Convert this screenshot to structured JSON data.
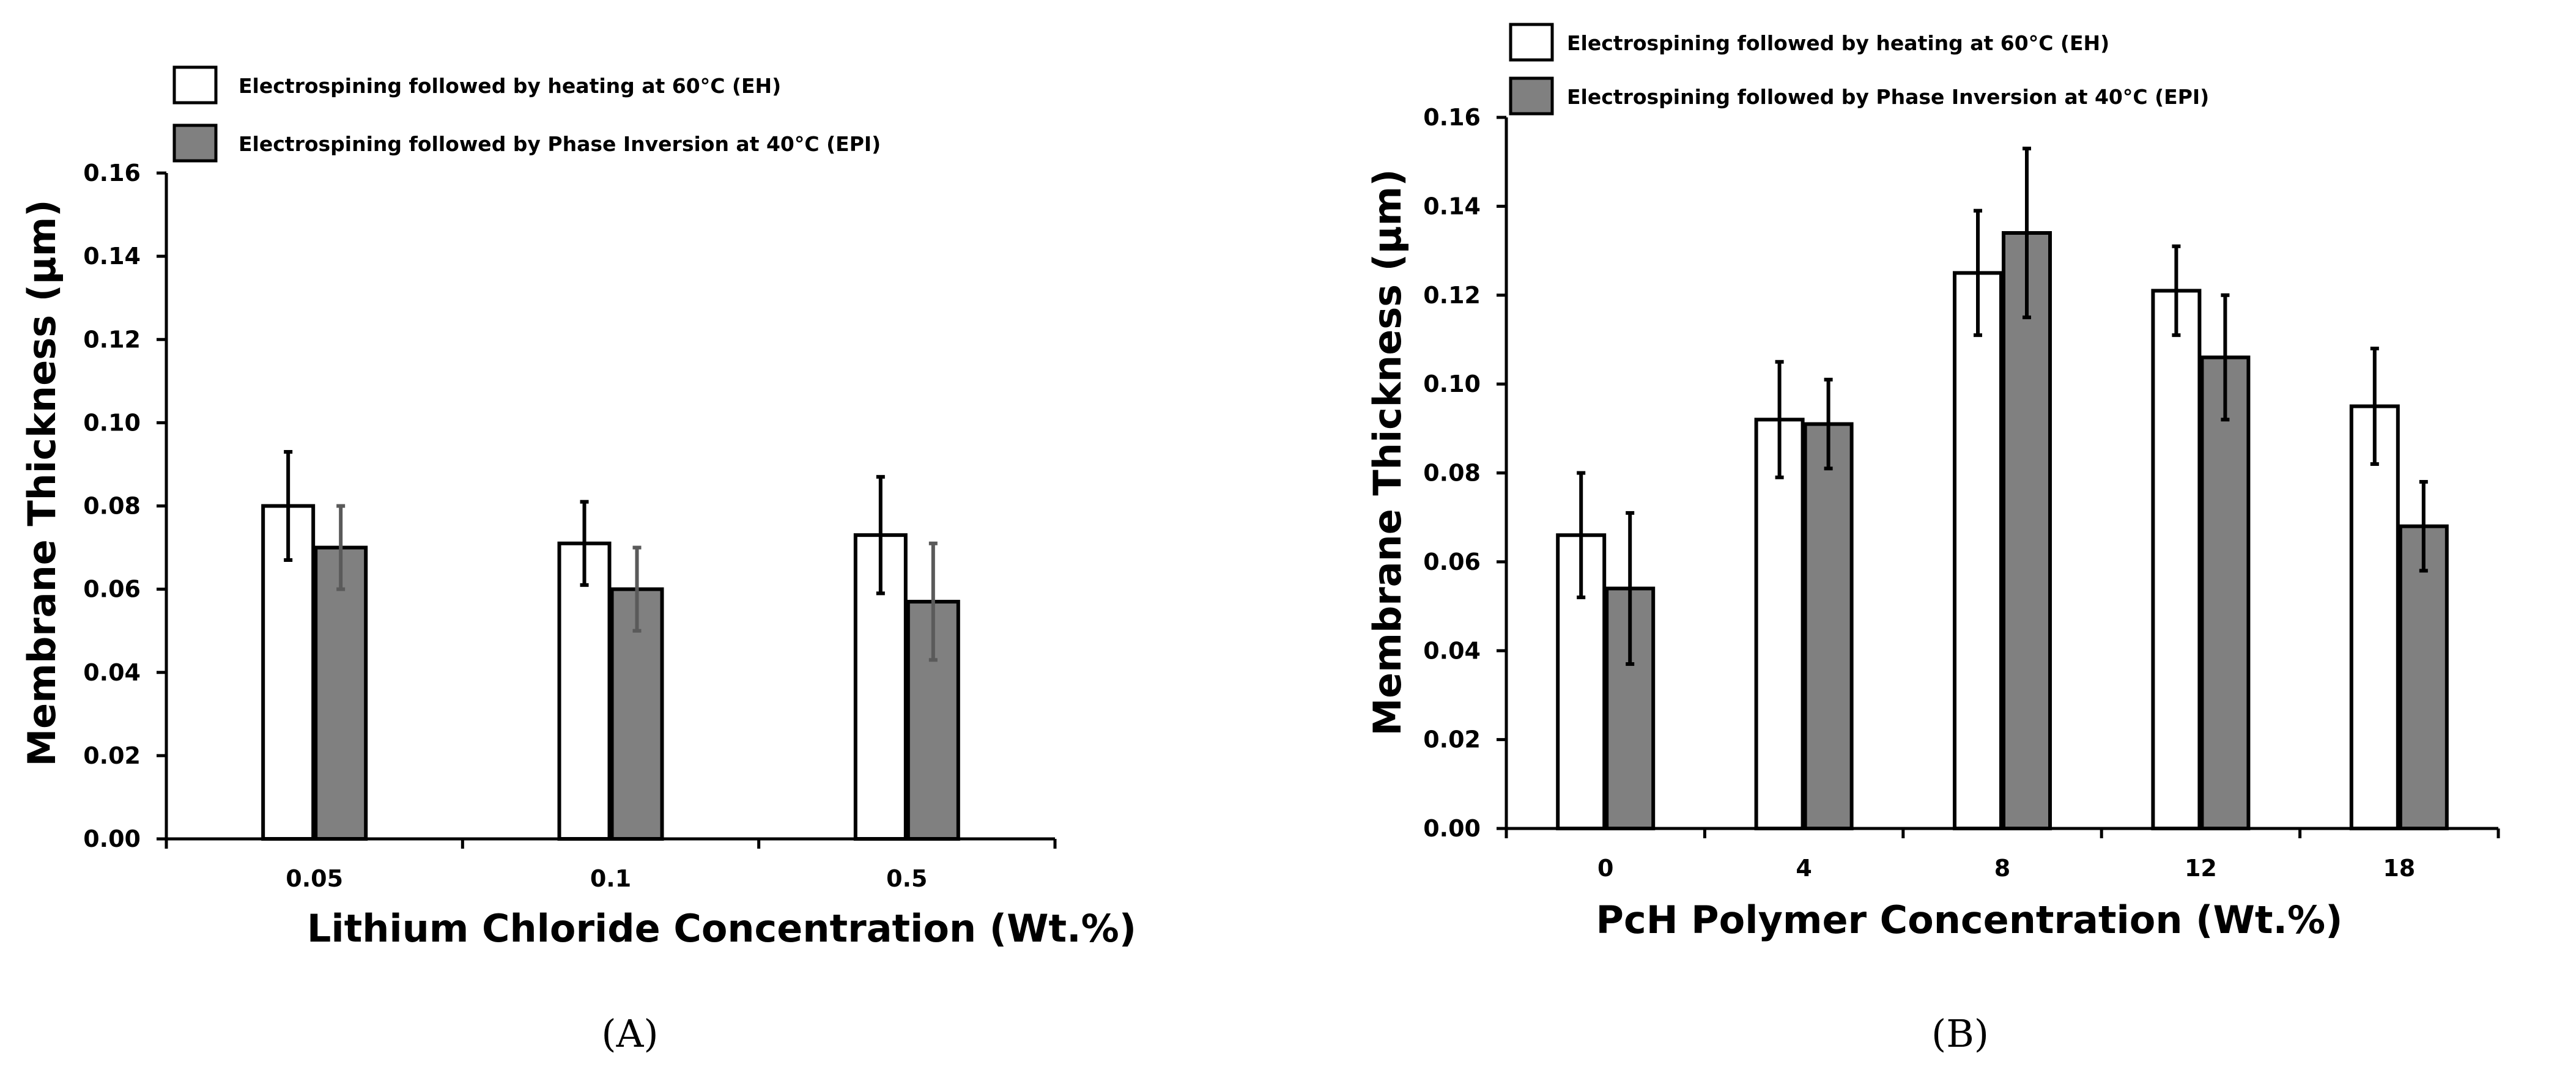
{
  "chart_data": [
    {
      "panel_label": "(A)",
      "type": "bar",
      "xlabel": "Lithium Chloride Concentration (Wt.%)",
      "ylabel": "Membrane Thickness (μm)",
      "ylim": [
        0,
        0.16
      ],
      "yticks": [
        "0.00",
        "0.02",
        "0.04",
        "0.06",
        "0.08",
        "0.10",
        "0.12",
        "0.14",
        "0.16"
      ],
      "categories": [
        "0.05",
        "0.1",
        "0.5"
      ],
      "series": [
        {
          "name": "Electrospining followed by heating at 60°C (EH)",
          "fill": "#ffffff",
          "values": [
            0.08,
            0.071,
            0.073
          ],
          "errors": [
            0.013,
            0.01,
            0.014
          ]
        },
        {
          "name": "Electrospining followed by Phase Inversion at 40°C (EPI)",
          "fill": "#808080",
          "values": [
            0.07,
            0.06,
            0.057
          ],
          "errors": [
            0.01,
            0.01,
            0.014
          ]
        }
      ],
      "legend": "top-left"
    },
    {
      "panel_label": "(B)",
      "type": "bar",
      "xlabel": "PcH Polymer Concentration (Wt.%)",
      "ylabel": "Membrane Thickness (μm)",
      "ylim": [
        0,
        0.16
      ],
      "yticks": [
        "0.00",
        "0.02",
        "0.04",
        "0.06",
        "0.08",
        "0.10",
        "0.12",
        "0.14",
        "0.16"
      ],
      "categories": [
        "0",
        "4",
        "8",
        "12",
        "18"
      ],
      "series": [
        {
          "name": "Electrospining followed by heating at 60°C (EH)",
          "fill": "#ffffff",
          "values": [
            0.066,
            0.092,
            0.125,
            0.121,
            0.095
          ],
          "errors": [
            0.014,
            0.013,
            0.014,
            0.01,
            0.013
          ]
        },
        {
          "name": "Electrospining followed by Phase Inversion at 40°C (EPI)",
          "fill": "#808080",
          "values": [
            0.054,
            0.091,
            0.134,
            0.106,
            0.068
          ],
          "errors": [
            0.017,
            0.01,
            0.019,
            0.014,
            0.01
          ]
        }
      ],
      "legend": "top-left"
    }
  ]
}
